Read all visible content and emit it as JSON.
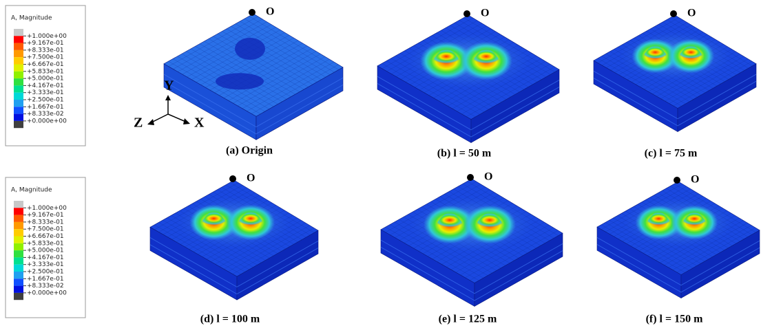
{
  "legends": [
    {
      "title": "A, Magnitude",
      "labels": [
        "+1.000e+00",
        "+9.167e-01",
        "+8.333e-01",
        "+7.500e-01",
        "+6.667e-01",
        "+5.833e-01",
        "+5.000e-01",
        "+4.167e-01",
        "+3.333e-01",
        "+2.500e-01",
        "+1.667e-01",
        "+8.333e-02",
        "+0.000e+00"
      ]
    },
    {
      "title": "A, Magnitude",
      "labels": [
        "+1.000e+00",
        "+9.167e-01",
        "+8.333e-01",
        "+7.500e-01",
        "+6.667e-01",
        "+5.833e-01",
        "+5.000e-01",
        "+4.167e-01",
        "+3.333e-01",
        "+2.500e-01",
        "+1.667e-01",
        "+8.333e-02",
        "+0.000e+00"
      ]
    }
  ],
  "triad": {
    "y": "Y",
    "z": "Z",
    "x": "X"
  },
  "panels": [
    {
      "origin": "O",
      "caption": "(a) Origin"
    },
    {
      "origin": "O",
      "caption": "(b) l = 50 m"
    },
    {
      "origin": "O",
      "caption": "(c) l = 75 m"
    },
    {
      "origin": "O",
      "caption": "(d) l = 100 m"
    },
    {
      "origin": "O",
      "caption": "(e) l = 125 m"
    },
    {
      "origin": "O",
      "caption": "(f) l = 150 m"
    }
  ]
}
